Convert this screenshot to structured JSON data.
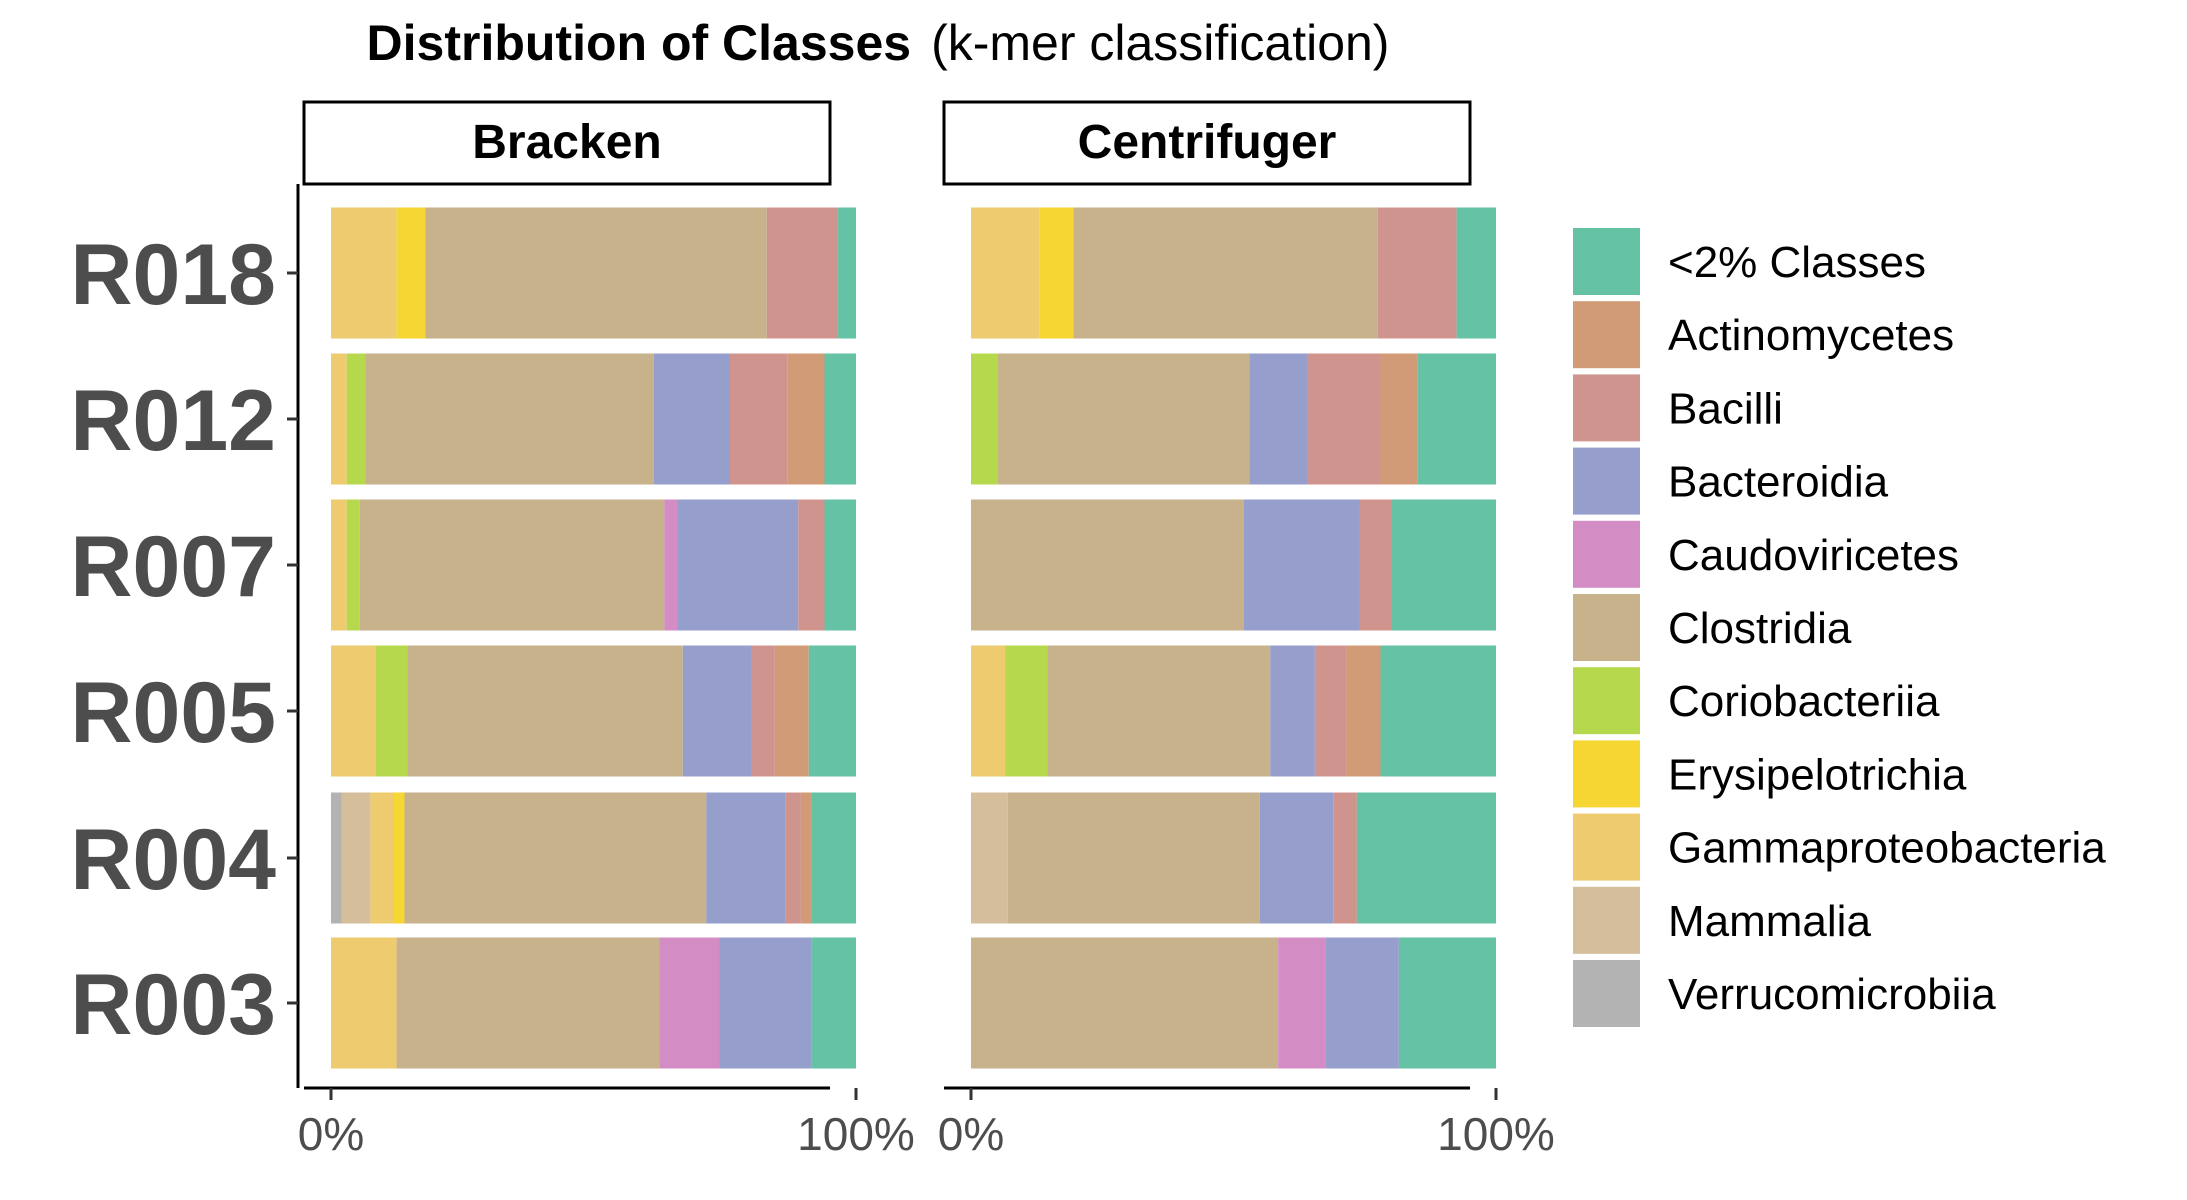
{
  "chart_data": {
    "type": "bar",
    "orientation": "horizontal",
    "stacked": "percent",
    "title": "Distribution of Classes",
    "subtitle": "(k-mer classification)",
    "categories": [
      "R018",
      "R012",
      "R007",
      "R005",
      "R004",
      "R003"
    ],
    "x_tick_labels": [
      "0%",
      "100%"
    ],
    "xlim": [
      0,
      100
    ],
    "grid": false,
    "legend_position": "right",
    "legend": [
      {
        "name": "<2% Classes",
        "color": "#66C2A5"
      },
      {
        "name": "Actinomycetes",
        "color": "#D09B76"
      },
      {
        "name": "Bacilli",
        "color": "#D0948E"
      },
      {
        "name": "Bacteroidia",
        "color": "#969FCB"
      },
      {
        "name": "Caudoviricetes",
        "color": "#D48CC4"
      },
      {
        "name": "Clostridia",
        "color": "#C7B28C"
      },
      {
        "name": "Coriobacteriia",
        "color": "#B5D84C"
      },
      {
        "name": "Erysipelotrichia",
        "color": "#F5D632"
      },
      {
        "name": "Gammaproteobacteria",
        "color": "#EDCB6E"
      },
      {
        "name": "Mammalia",
        "color": "#D4BE9C"
      },
      {
        "name": "Verrucomicrobiia",
        "color": "#B3B3B3"
      }
    ],
    "panels": [
      {
        "name": "Bracken",
        "bars": [
          {
            "sample": "R018",
            "segments": [
              {
                "class": "Gammaproteobacteria",
                "value": 12.5
              },
              {
                "class": "Erysipelotrichia",
                "value": 5.5
              },
              {
                "class": "Clostridia",
                "value": 65.0
              },
              {
                "class": "Bacilli",
                "value": 13.5
              },
              {
                "class": "<2% Classes",
                "value": 3.5
              }
            ]
          },
          {
            "sample": "R012",
            "segments": [
              {
                "class": "Gammaproteobacteria",
                "value": 3.0
              },
              {
                "class": "Coriobacteriia",
                "value": 3.5
              },
              {
                "class": "Clostridia",
                "value": 55.0
              },
              {
                "class": "Bacteroidia",
                "value": 14.5
              },
              {
                "class": "Bacilli",
                "value": 11.0
              },
              {
                "class": "Actinomycetes",
                "value": 7.0
              },
              {
                "class": "<2% Classes",
                "value": 6.0
              }
            ]
          },
          {
            "sample": "R007",
            "segments": [
              {
                "class": "Gammaproteobacteria",
                "value": 3.0
              },
              {
                "class": "Coriobacteriia",
                "value": 2.5
              },
              {
                "class": "Clostridia",
                "value": 58.0
              },
              {
                "class": "Caudoviricetes",
                "value": 2.5
              },
              {
                "class": "Bacteroidia",
                "value": 23.0
              },
              {
                "class": "Bacilli",
                "value": 5.0
              },
              {
                "class": "<2% Classes",
                "value": 6.0
              }
            ]
          },
          {
            "sample": "R005",
            "segments": [
              {
                "class": "Gammaproteobacteria",
                "value": 8.5
              },
              {
                "class": "Coriobacteriia",
                "value": 6.0
              },
              {
                "class": "Clostridia",
                "value": 52.5
              },
              {
                "class": "Bacteroidia",
                "value": 13.0
              },
              {
                "class": "Bacilli",
                "value": 4.5
              },
              {
                "class": "Actinomycetes",
                "value": 6.5
              },
              {
                "class": "<2% Classes",
                "value": 9.0
              }
            ]
          },
          {
            "sample": "R004",
            "segments": [
              {
                "class": "Verrucomicrobiia",
                "value": 2.0
              },
              {
                "class": "Mammalia",
                "value": 5.5
              },
              {
                "class": "Gammaproteobacteria",
                "value": 4.5
              },
              {
                "class": "Erysipelotrichia",
                "value": 2.0
              },
              {
                "class": "Clostridia",
                "value": 57.5
              },
              {
                "class": "Bacteroidia",
                "value": 15.0
              },
              {
                "class": "Bacilli",
                "value": 3.0
              },
              {
                "class": "Actinomycetes",
                "value": 2.0
              },
              {
                "class": "<2% Classes",
                "value": 8.5
              }
            ]
          },
          {
            "sample": "R003",
            "segments": [
              {
                "class": "Gammaproteobacteria",
                "value": 12.5
              },
              {
                "class": "Clostridia",
                "value": 50.0
              },
              {
                "class": "Caudoviricetes",
                "value": 11.5
              },
              {
                "class": "Bacteroidia",
                "value": 17.5
              },
              {
                "class": "<2% Classes",
                "value": 8.5
              }
            ]
          }
        ]
      },
      {
        "name": "Centrifuger",
        "bars": [
          {
            "sample": "R018",
            "segments": [
              {
                "class": "Gammaproteobacteria",
                "value": 13.0
              },
              {
                "class": "Erysipelotrichia",
                "value": 6.5
              },
              {
                "class": "Clostridia",
                "value": 58.0
              },
              {
                "class": "Bacilli",
                "value": 15.0
              },
              {
                "class": "<2% Classes",
                "value": 7.5
              }
            ]
          },
          {
            "sample": "R012",
            "segments": [
              {
                "class": "Coriobacteriia",
                "value": 5.0
              },
              {
                "class": "Clostridia",
                "value": 48.0
              },
              {
                "class": "Bacteroidia",
                "value": 11.0
              },
              {
                "class": "Bacilli",
                "value": 14.0
              },
              {
                "class": "Actinomycetes",
                "value": 7.0
              },
              {
                "class": "<2% Classes",
                "value": 15.0
              }
            ]
          },
          {
            "sample": "R007",
            "segments": [
              {
                "class": "Clostridia",
                "value": 52.0
              },
              {
                "class": "Bacteroidia",
                "value": 22.0
              },
              {
                "class": "Bacilli",
                "value": 6.0
              },
              {
                "class": "<2% Classes",
                "value": 20.0
              }
            ]
          },
          {
            "sample": "R005",
            "segments": [
              {
                "class": "Gammaproteobacteria",
                "value": 6.5
              },
              {
                "class": "Coriobacteriia",
                "value": 8.0
              },
              {
                "class": "Clostridia",
                "value": 42.5
              },
              {
                "class": "Bacteroidia",
                "value": 8.5
              },
              {
                "class": "Bacilli",
                "value": 6.0
              },
              {
                "class": "Actinomycetes",
                "value": 6.5
              },
              {
                "class": "<2% Classes",
                "value": 22.0
              }
            ]
          },
          {
            "sample": "R004",
            "segments": [
              {
                "class": "Mammalia",
                "value": 7.0
              },
              {
                "class": "Clostridia",
                "value": 48.0
              },
              {
                "class": "Bacteroidia",
                "value": 14.0
              },
              {
                "class": "Bacilli",
                "value": 4.5
              },
              {
                "class": "<2% Classes",
                "value": 26.5
              }
            ]
          },
          {
            "sample": "R003",
            "segments": [
              {
                "class": "Clostridia",
                "value": 58.5
              },
              {
                "class": "Caudoviricetes",
                "value": 9.0
              },
              {
                "class": "Bacteroidia",
                "value": 14.0
              },
              {
                "class": "<2% Classes",
                "value": 18.5
              }
            ]
          }
        ]
      }
    ]
  }
}
